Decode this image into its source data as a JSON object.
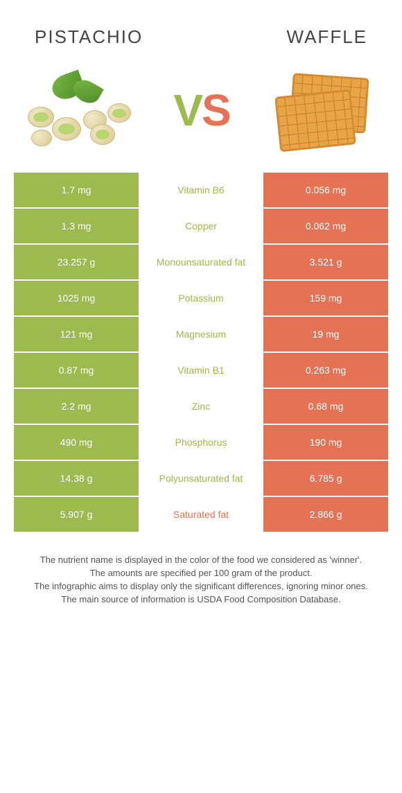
{
  "titles": {
    "left": "Pistachio",
    "right": "Waffle"
  },
  "vs": {
    "v": "V",
    "s": "S"
  },
  "colors": {
    "pistachio": "#9cba4e",
    "waffle": "#e57254",
    "v": "#9cba4e",
    "s": "#e57254"
  },
  "rows": [
    {
      "left": "1.7 mg",
      "label": "Vitamin B6",
      "right": "0.056 mg",
      "winner": "pistachio"
    },
    {
      "left": "1.3 mg",
      "label": "Copper",
      "right": "0.062 mg",
      "winner": "pistachio"
    },
    {
      "left": "23.257 g",
      "label": "Monounsaturated fat",
      "right": "3.521 g",
      "winner": "pistachio"
    },
    {
      "left": "1025 mg",
      "label": "Potassium",
      "right": "159 mg",
      "winner": "pistachio"
    },
    {
      "left": "121 mg",
      "label": "Magnesium",
      "right": "19 mg",
      "winner": "pistachio"
    },
    {
      "left": "0.87 mg",
      "label": "Vitamin B1",
      "right": "0.263 mg",
      "winner": "pistachio"
    },
    {
      "left": "2.2 mg",
      "label": "Zinc",
      "right": "0.68 mg",
      "winner": "pistachio"
    },
    {
      "left": "490 mg",
      "label": "Phosphorus",
      "right": "190 mg",
      "winner": "pistachio"
    },
    {
      "left": "14.38 g",
      "label": "Polyunsaturated fat",
      "right": "6.785 g",
      "winner": "pistachio"
    },
    {
      "left": "5.907 g",
      "label": "Saturated fat",
      "right": "2.866 g",
      "winner": "waffle"
    }
  ],
  "footer": {
    "line1": "The nutrient name is displayed in the color of the food we considered as 'winner'.",
    "line2": "The amounts are specified per 100 gram of the product.",
    "line3": "The infographic aims to display only the significant differences, ignoring minor ones.",
    "line4": "The main source of information is USDA Food Composition Database."
  }
}
